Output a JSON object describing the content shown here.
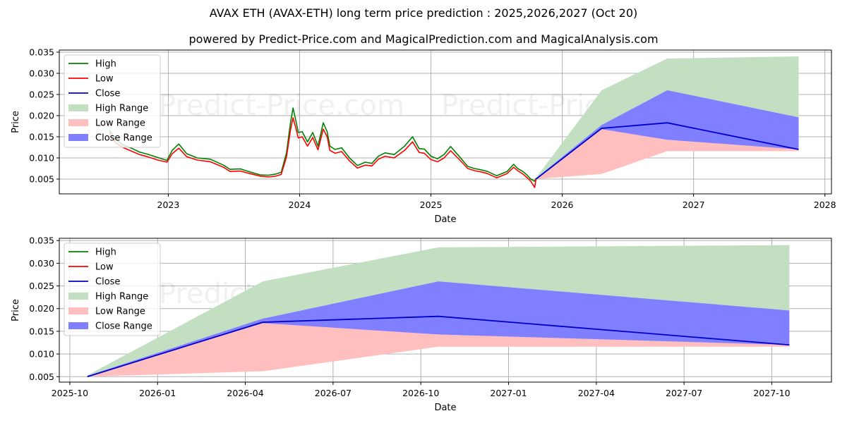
{
  "title": "AVAX ETH (AVAX-ETH) long term price prediction : 2025,2026,2027 (Oct 20)",
  "subtitle": "powered by Predict-Price.com and MagicalPrediction.com and MagicalAnalysis.com",
  "watermark": "Predict-Price.com",
  "colors": {
    "high": "#008000",
    "low": "#ff0000",
    "close": "#0000cc",
    "high_range": "#c2dfc2",
    "low_range": "#ffbfbf",
    "close_range": "#7f7fff"
  },
  "chart_data": [
    {
      "type": "line",
      "xlabel": "Date",
      "ylabel": "Price",
      "xlim": [
        2022.17,
        2028.05
      ],
      "ylim": [
        0.0015,
        0.0355
      ],
      "xticks": [
        2023,
        2024,
        2025,
        2026,
        2027,
        2028
      ],
      "xtick_labels": [
        "2023",
        "2024",
        "2025",
        "2026",
        "2027",
        "2028"
      ],
      "yticks": [
        0.005,
        0.01,
        0.015,
        0.02,
        0.025,
        0.03,
        0.035
      ],
      "ytick_labels": [
        "0.005",
        "0.010",
        "0.015",
        "0.020",
        "0.025",
        "0.030",
        "0.035"
      ],
      "legend": {
        "position": "top-left",
        "entries": [
          "High",
          "Low",
          "Close",
          "High Range",
          "Low Range",
          "Close Range"
        ]
      },
      "history": {
        "x": [
          2022.55,
          2022.6,
          2022.66,
          2022.72,
          2022.78,
          2022.84,
          2022.92,
          2022.99,
          2023.03,
          2023.08,
          2023.14,
          2023.22,
          2023.32,
          2023.42,
          2023.47,
          2023.55,
          2023.62,
          2023.7,
          2023.76,
          2023.82,
          2023.86,
          2023.9,
          2023.93,
          2023.95,
          2023.97,
          2023.99,
          2024.02,
          2024.06,
          2024.1,
          2024.14,
          2024.18,
          2024.21,
          2024.23,
          2024.27,
          2024.32,
          2024.38,
          2024.44,
          2024.5,
          2024.55,
          2024.6,
          2024.65,
          2024.72,
          2024.8,
          2024.86,
          2024.91,
          2024.95,
          2025.0,
          2025.05,
          2025.1,
          2025.15,
          2025.22,
          2025.28,
          2025.33,
          2025.38,
          2025.43,
          2025.5,
          2025.58,
          2025.63,
          2025.66,
          2025.7,
          2025.73,
          2025.76,
          2025.79,
          2025.8
        ],
        "high": [
          0.0166,
          0.0144,
          0.013,
          0.0123,
          0.0114,
          0.0109,
          0.0101,
          0.0094,
          0.0118,
          0.0133,
          0.011,
          0.01,
          0.0097,
          0.0083,
          0.0073,
          0.0074,
          0.0067,
          0.006,
          0.0059,
          0.0062,
          0.0066,
          0.0112,
          0.0182,
          0.0218,
          0.019,
          0.016,
          0.0162,
          0.0138,
          0.016,
          0.0128,
          0.0183,
          0.0162,
          0.0128,
          0.012,
          0.0124,
          0.01,
          0.0082,
          0.009,
          0.0087,
          0.0104,
          0.0112,
          0.0108,
          0.0128,
          0.015,
          0.0122,
          0.0121,
          0.0104,
          0.0098,
          0.0108,
          0.0127,
          0.0102,
          0.008,
          0.0075,
          0.0072,
          0.0068,
          0.0058,
          0.0068,
          0.0085,
          0.0075,
          0.0068,
          0.006,
          0.005,
          0.0045,
          0.0052
        ],
        "low": [
          0.016,
          0.0136,
          0.0124,
          0.0116,
          0.0108,
          0.0103,
          0.0095,
          0.009,
          0.011,
          0.0123,
          0.0103,
          0.0095,
          0.0091,
          0.0078,
          0.0068,
          0.0069,
          0.0063,
          0.0057,
          0.0055,
          0.0057,
          0.0061,
          0.0102,
          0.0165,
          0.0195,
          0.0172,
          0.0147,
          0.015,
          0.0128,
          0.0148,
          0.0119,
          0.0168,
          0.015,
          0.0118,
          0.0111,
          0.0115,
          0.0093,
          0.0076,
          0.0083,
          0.0081,
          0.0097,
          0.0104,
          0.01,
          0.0118,
          0.0138,
          0.0113,
          0.0111,
          0.0096,
          0.0091,
          0.01,
          0.0117,
          0.0095,
          0.0075,
          0.007,
          0.0067,
          0.0063,
          0.0053,
          0.0063,
          0.0078,
          0.007,
          0.0062,
          0.0054,
          0.0045,
          0.003,
          0.005
        ]
      },
      "forecast": {
        "x": [
          2025.8,
          2026.3,
          2026.8,
          2027.8
        ],
        "close": [
          0.005,
          0.017,
          0.0183,
          0.012
        ],
        "high_range_upper": [
          0.0053,
          0.026,
          0.0335,
          0.034
        ],
        "close_range_upper": [
          0.0052,
          0.0178,
          0.026,
          0.0196
        ],
        "close_range_lower": [
          0.005,
          0.0168,
          0.0143,
          0.012
        ],
        "low_range_upper": [
          0.0051,
          0.017,
          0.0143,
          0.0121
        ],
        "low_range_lower": [
          0.005,
          0.0062,
          0.0116,
          0.0116
        ]
      }
    },
    {
      "type": "line",
      "xlabel": "Date",
      "ylabel": "Price",
      "xlim": [
        2025.72,
        2027.92
      ],
      "ylim": [
        0.0038,
        0.0355
      ],
      "xticks": [
        2025.75,
        2026.0,
        2026.25,
        2026.5,
        2026.75,
        2027.0,
        2027.25,
        2027.5,
        2027.75
      ],
      "xtick_labels": [
        "2025-10",
        "2026-01",
        "2026-04",
        "2026-07",
        "2026-10",
        "2027-01",
        "2027-04",
        "2027-07",
        "2027-10"
      ],
      "yticks": [
        0.005,
        0.01,
        0.015,
        0.02,
        0.025,
        0.03,
        0.035
      ],
      "ytick_labels": [
        "0.005",
        "0.010",
        "0.015",
        "0.020",
        "0.025",
        "0.030",
        "0.035"
      ],
      "legend": {
        "position": "top-left",
        "entries": [
          "High",
          "Low",
          "Close",
          "High Range",
          "Low Range",
          "Close Range"
        ]
      },
      "forecast": {
        "x": [
          2025.8,
          2026.3,
          2026.8,
          2027.8
        ],
        "close": [
          0.005,
          0.017,
          0.0183,
          0.012
        ],
        "high_range_upper": [
          0.0053,
          0.026,
          0.0335,
          0.034
        ],
        "close_range_upper": [
          0.0052,
          0.0178,
          0.026,
          0.0196
        ],
        "close_range_lower": [
          0.005,
          0.0168,
          0.0143,
          0.012
        ],
        "low_range_upper": [
          0.0051,
          0.017,
          0.0143,
          0.0121
        ],
        "low_range_lower": [
          0.005,
          0.0062,
          0.0116,
          0.0116
        ]
      }
    }
  ]
}
